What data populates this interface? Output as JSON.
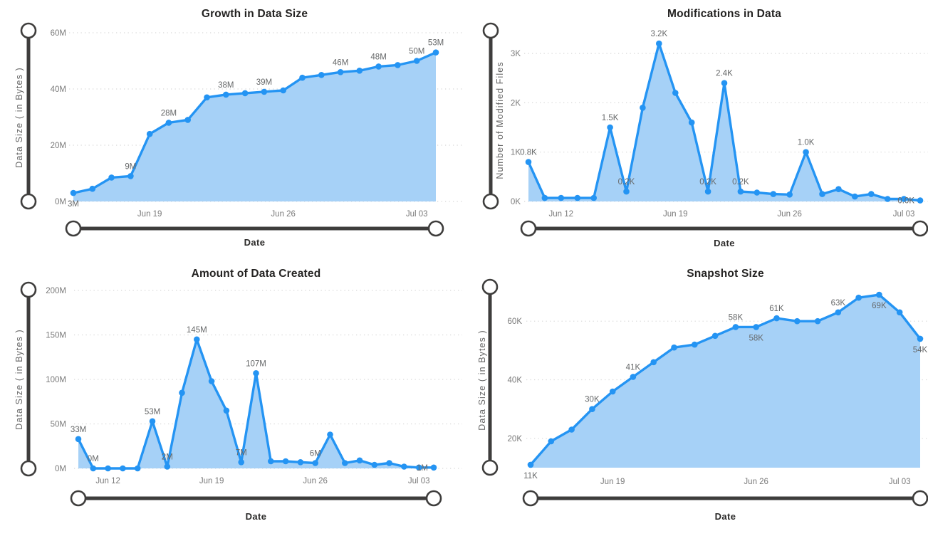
{
  "page_background": "#FFFFFF",
  "colors": {
    "line": "#2494F3",
    "area": "#A6D1F7",
    "slider": "#3E3D3C",
    "grid": "#D8D8D8",
    "tick": "#7A7A7A",
    "label": "#666869",
    "title": "#232221",
    "axis_title": "#656565"
  },
  "chart_data": [
    {
      "type": "area",
      "title": "Growth in Data Size",
      "ylabel": "Data Size ( in Bytes )",
      "xlabel": "Date",
      "unit": "M (bytes, millions)",
      "ylim": [
        0,
        60
      ],
      "y_ticks": [
        {
          "value": 0,
          "label": "0M"
        },
        {
          "value": 20,
          "label": "20M"
        },
        {
          "value": 40,
          "label": "40M"
        },
        {
          "value": 60,
          "label": "60M"
        }
      ],
      "x_tick_labels": [
        {
          "index": 4,
          "label": "Jun 19"
        },
        {
          "index": 11,
          "label": "Jun 26"
        },
        {
          "index": 18,
          "label": "Jul 03"
        }
      ],
      "values": [
        3,
        4.5,
        8.5,
        9,
        24,
        28,
        29,
        37,
        38,
        38.5,
        39,
        39.5,
        44,
        45,
        46,
        46.5,
        48,
        48.5,
        50,
        53
      ],
      "point_labels": [
        {
          "index": 0,
          "text": "3M",
          "position": "below"
        },
        {
          "index": 3,
          "text": "9M",
          "position": "above"
        },
        {
          "index": 5,
          "text": "28M",
          "position": "above"
        },
        {
          "index": 8,
          "text": "38M",
          "position": "above"
        },
        {
          "index": 10,
          "text": "39M",
          "position": "above"
        },
        {
          "index": 14,
          "text": "46M",
          "position": "above"
        },
        {
          "index": 16,
          "text": "48M",
          "position": "above"
        },
        {
          "index": 18,
          "text": "50M",
          "position": "above"
        },
        {
          "index": 19,
          "text": "53M",
          "position": "above"
        }
      ],
      "grid": "dotted-horizontal",
      "legend": "none"
    },
    {
      "type": "area",
      "title": "Modifications in Data",
      "ylabel": "Number of Modified Files",
      "xlabel": "Date",
      "unit": "K (thousands of files)",
      "ylim": [
        0,
        3.29
      ],
      "y_ticks": [
        {
          "value": 0,
          "label": "0K"
        },
        {
          "value": 1,
          "label": "1K"
        },
        {
          "value": 2,
          "label": "2K"
        },
        {
          "value": 3,
          "label": "3K"
        }
      ],
      "x_tick_labels": [
        {
          "index": 2,
          "label": "Jun 12"
        },
        {
          "index": 9,
          "label": "Jun 19"
        },
        {
          "index": 16,
          "label": "Jun 26"
        },
        {
          "index": 23,
          "label": "Jul 03"
        }
      ],
      "values": [
        0.8,
        0.07,
        0.07,
        0.07,
        0.07,
        1.5,
        0.2,
        1.9,
        3.2,
        2.2,
        1.6,
        0.2,
        2.4,
        0.2,
        0.18,
        0.15,
        0.14,
        1.0,
        0.15,
        0.25,
        0.1,
        0.15,
        0.05,
        0.05,
        0.02
      ],
      "point_labels": [
        {
          "index": 0,
          "text": "0.8K",
          "position": "above"
        },
        {
          "index": 5,
          "text": "1.5K",
          "position": "above"
        },
        {
          "index": 6,
          "text": "0.2K",
          "position": "above"
        },
        {
          "index": 8,
          "text": "3.2K",
          "position": "above"
        },
        {
          "index": 11,
          "text": "0.2K",
          "position": "above"
        },
        {
          "index": 12,
          "text": "2.4K",
          "position": "above"
        },
        {
          "index": 13,
          "text": "0.2K",
          "position": "above"
        },
        {
          "index": 17,
          "text": "1.0K",
          "position": "above"
        },
        {
          "index": 24,
          "text": "0.0K",
          "position": "left"
        }
      ],
      "grid": "dotted-horizontal",
      "legend": "none"
    },
    {
      "type": "area",
      "title": "Amount of Data Created",
      "ylabel": "Data Size ( in Bytes )",
      "xlabel": "Date",
      "unit": "M (bytes, millions)",
      "ylim": [
        0,
        200
      ],
      "y_ticks": [
        {
          "value": 0,
          "label": "0M"
        },
        {
          "value": 50,
          "label": "50M"
        },
        {
          "value": 100,
          "label": "100M"
        },
        {
          "value": 150,
          "label": "150M"
        },
        {
          "value": 200,
          "label": "200M"
        }
      ],
      "x_tick_labels": [
        {
          "index": 2,
          "label": "Jun 12"
        },
        {
          "index": 9,
          "label": "Jun 19"
        },
        {
          "index": 16,
          "label": "Jun 26"
        },
        {
          "index": 23,
          "label": "Jul 03"
        }
      ],
      "values": [
        33,
        0,
        0,
        0,
        0,
        53,
        2,
        85,
        145,
        98,
        65,
        7,
        107,
        8,
        8,
        7,
        6,
        38,
        6,
        9,
        4,
        6,
        2,
        1,
        1
      ],
      "point_labels": [
        {
          "index": 0,
          "text": "33M",
          "position": "above"
        },
        {
          "index": 1,
          "text": "0M",
          "position": "above"
        },
        {
          "index": 5,
          "text": "53M",
          "position": "above"
        },
        {
          "index": 6,
          "text": "2M",
          "position": "above"
        },
        {
          "index": 8,
          "text": "145M",
          "position": "above"
        },
        {
          "index": 11,
          "text": "7M",
          "position": "above"
        },
        {
          "index": 12,
          "text": "107M",
          "position": "above"
        },
        {
          "index": 16,
          "text": "6M",
          "position": "above"
        },
        {
          "index": 24,
          "text": "1M",
          "position": "left"
        }
      ],
      "grid": "dotted-horizontal",
      "legend": "none"
    },
    {
      "type": "area",
      "title": "Snapshot Size",
      "ylabel": "Data Size ( in Bytes )",
      "xlabel": "Date",
      "unit": "K (bytes, thousands)",
      "ylim": [
        10,
        70
      ],
      "y_ticks": [
        {
          "value": 20,
          "label": "20K"
        },
        {
          "value": 40,
          "label": "40K"
        },
        {
          "value": 60,
          "label": "60K"
        }
      ],
      "x_tick_labels": [
        {
          "index": 4,
          "label": "Jun 19"
        },
        {
          "index": 11,
          "label": "Jun 26"
        },
        {
          "index": 18,
          "label": "Jul 03"
        }
      ],
      "values": [
        11,
        19,
        23,
        30,
        36,
        41,
        46,
        51,
        52,
        55,
        58,
        58,
        61,
        60,
        60,
        63,
        68,
        69,
        63,
        54
      ],
      "point_labels": [
        {
          "index": 0,
          "text": "11K",
          "position": "below"
        },
        {
          "index": 3,
          "text": "30K",
          "position": "above"
        },
        {
          "index": 5,
          "text": "41K",
          "position": "above"
        },
        {
          "index": 10,
          "text": "58K",
          "position": "above"
        },
        {
          "index": 11,
          "text": "58K",
          "position": "below"
        },
        {
          "index": 12,
          "text": "61K",
          "position": "above"
        },
        {
          "index": 15,
          "text": "63K",
          "position": "above"
        },
        {
          "index": 17,
          "text": "69K",
          "position": "below"
        },
        {
          "index": 19,
          "text": "54K",
          "position": "below"
        }
      ],
      "grid": "dotted-horizontal",
      "legend": "none"
    }
  ]
}
